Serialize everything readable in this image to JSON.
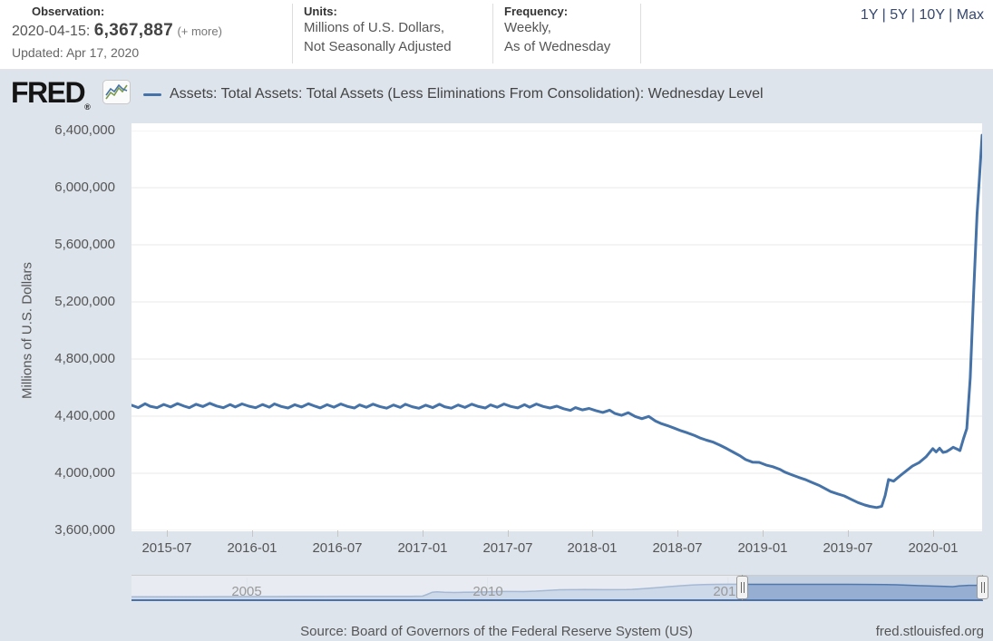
{
  "header": {
    "observation": {
      "label": "Observation:",
      "date_prefix": "2020-04-15:",
      "value": "6,367,887",
      "more": "(+ more)",
      "updated": "Updated: Apr 17, 2020"
    },
    "units": {
      "label": "Units:",
      "line1": "Millions of U.S. Dollars,",
      "line2": "Not Seasonally Adjusted"
    },
    "frequency": {
      "label": "Frequency:",
      "line1": "Weekly,",
      "line2": "As of Wednesday"
    },
    "range_selector": {
      "options": [
        "1Y",
        "5Y",
        "10Y",
        "Max"
      ],
      "separator": "|"
    }
  },
  "brand": {
    "logo_text": "FRED",
    "registered": "®",
    "icon": "fred-sparkline-icon"
  },
  "legend": {
    "marker_color": "#4572a7",
    "label": "Assets: Total Assets: Total Assets (Less Eliminations From Consolidation): Wednesday Level"
  },
  "footer": {
    "source": "Source: Board of Governors of the Federal Reserve System (US)",
    "site": "fred.stlouisfed.org"
  },
  "colors": {
    "line": "#4572a7",
    "page_bg": "#dde4ec",
    "plot_bg": "#ffffff",
    "grid": "#e8e8e8",
    "range_link": "#36486e",
    "nav_area_fill": "#a3b8d8",
    "nav_line": "#4a72a8"
  },
  "chart_data": {
    "type": "line",
    "title": "Assets: Total Assets: Total Assets (Less Eliminations From Consolidation): Wednesday Level",
    "xlabel": "",
    "ylabel": "Millions of U.S. Dollars",
    "grid": "horizontal",
    "legend_position": "top",
    "x_range": [
      2015.29,
      2020.29
    ],
    "y_range": [
      3600000,
      6400000
    ],
    "y_ticks": [
      {
        "v": 6400000,
        "label": "6,400,000"
      },
      {
        "v": 6000000,
        "label": "6,000,000"
      },
      {
        "v": 5600000,
        "label": "5,600,000"
      },
      {
        "v": 5200000,
        "label": "5,200,000"
      },
      {
        "v": 4800000,
        "label": "4,800,000"
      },
      {
        "v": 4400000,
        "label": "4,400,000"
      },
      {
        "v": 4000000,
        "label": "4,000,000"
      },
      {
        "v": 3600000,
        "label": "3,600,000"
      }
    ],
    "x_ticks": [
      {
        "v": 2015.5,
        "label": "2015-07"
      },
      {
        "v": 2016.0,
        "label": "2016-01"
      },
      {
        "v": 2016.5,
        "label": "2016-07"
      },
      {
        "v": 2017.0,
        "label": "2017-01"
      },
      {
        "v": 2017.5,
        "label": "2017-07"
      },
      {
        "v": 2018.0,
        "label": "2018-01"
      },
      {
        "v": 2018.5,
        "label": "2018-07"
      },
      {
        "v": 2019.0,
        "label": "2019-01"
      },
      {
        "v": 2019.5,
        "label": "2019-07"
      },
      {
        "v": 2020.0,
        "label": "2020-01"
      }
    ],
    "series": [
      {
        "name": "Assets: Total Assets: Total Assets (Less Eliminations From Consolidation): Wednesday Level",
        "units": "Millions of U.S. Dollars",
        "last_observation": {
          "date": "2020-04-15",
          "value": 6367887
        },
        "points": [
          [
            2015.29,
            4477000
          ],
          [
            2015.33,
            4460000
          ],
          [
            2015.37,
            4487000
          ],
          [
            2015.4,
            4469000
          ],
          [
            2015.44,
            4459000
          ],
          [
            2015.48,
            4482000
          ],
          [
            2015.52,
            4464000
          ],
          [
            2015.56,
            4488000
          ],
          [
            2015.6,
            4470000
          ],
          [
            2015.63,
            4459000
          ],
          [
            2015.67,
            4483000
          ],
          [
            2015.71,
            4467000
          ],
          [
            2015.75,
            4490000
          ],
          [
            2015.79,
            4471000
          ],
          [
            2015.83,
            4459000
          ],
          [
            2015.87,
            4481000
          ],
          [
            2015.9,
            4464000
          ],
          [
            2015.94,
            4486000
          ],
          [
            2015.98,
            4470000
          ],
          [
            2016.02,
            4459000
          ],
          [
            2016.06,
            4481000
          ],
          [
            2016.1,
            4463000
          ],
          [
            2016.13,
            4486000
          ],
          [
            2016.17,
            4468000
          ],
          [
            2016.21,
            4457000
          ],
          [
            2016.25,
            4480000
          ],
          [
            2016.29,
            4464000
          ],
          [
            2016.33,
            4487000
          ],
          [
            2016.37,
            4469000
          ],
          [
            2016.4,
            4458000
          ],
          [
            2016.44,
            4480000
          ],
          [
            2016.48,
            4463000
          ],
          [
            2016.52,
            4485000
          ],
          [
            2016.56,
            4468000
          ],
          [
            2016.6,
            4457000
          ],
          [
            2016.63,
            4479000
          ],
          [
            2016.67,
            4462000
          ],
          [
            2016.71,
            4484000
          ],
          [
            2016.75,
            4467000
          ],
          [
            2016.79,
            4456000
          ],
          [
            2016.83,
            4478000
          ],
          [
            2016.87,
            4461000
          ],
          [
            2016.9,
            4483000
          ],
          [
            2016.94,
            4466000
          ],
          [
            2016.98,
            4455000
          ],
          [
            2017.02,
            4477000
          ],
          [
            2017.06,
            4460000
          ],
          [
            2017.1,
            4483000
          ],
          [
            2017.13,
            4466000
          ],
          [
            2017.17,
            4456000
          ],
          [
            2017.21,
            4478000
          ],
          [
            2017.25,
            4461000
          ],
          [
            2017.29,
            4484000
          ],
          [
            2017.33,
            4467000
          ],
          [
            2017.37,
            4457000
          ],
          [
            2017.4,
            4479000
          ],
          [
            2017.44,
            4462000
          ],
          [
            2017.48,
            4485000
          ],
          [
            2017.52,
            4468000
          ],
          [
            2017.56,
            4458000
          ],
          [
            2017.6,
            4480000
          ],
          [
            2017.63,
            4463000
          ],
          [
            2017.67,
            4485000
          ],
          [
            2017.71,
            4468000
          ],
          [
            2017.75,
            4457000
          ],
          [
            2017.79,
            4470000
          ],
          [
            2017.83,
            4452000
          ],
          [
            2017.87,
            4440000
          ],
          [
            2017.9,
            4460000
          ],
          [
            2017.94,
            4444000
          ],
          [
            2017.98,
            4454000
          ],
          [
            2018.02,
            4439000
          ],
          [
            2018.06,
            4426000
          ],
          [
            2018.1,
            4442000
          ],
          [
            2018.13,
            4420000
          ],
          [
            2018.17,
            4406000
          ],
          [
            2018.21,
            4424000
          ],
          [
            2018.25,
            4398000
          ],
          [
            2018.29,
            4382000
          ],
          [
            2018.33,
            4398000
          ],
          [
            2018.37,
            4366000
          ],
          [
            2018.4,
            4350000
          ],
          [
            2018.44,
            4334000
          ],
          [
            2018.48,
            4316000
          ],
          [
            2018.52,
            4298000
          ],
          [
            2018.56,
            4282000
          ],
          [
            2018.6,
            4264000
          ],
          [
            2018.63,
            4248000
          ],
          [
            2018.67,
            4232000
          ],
          [
            2018.71,
            4218000
          ],
          [
            2018.75,
            4196000
          ],
          [
            2018.79,
            4172000
          ],
          [
            2018.83,
            4146000
          ],
          [
            2018.87,
            4120000
          ],
          [
            2018.9,
            4096000
          ],
          [
            2018.94,
            4078000
          ],
          [
            2018.98,
            4076000
          ],
          [
            2019.02,
            4058000
          ],
          [
            2019.06,
            4046000
          ],
          [
            2019.1,
            4028000
          ],
          [
            2019.13,
            4008000
          ],
          [
            2019.17,
            3990000
          ],
          [
            2019.21,
            3972000
          ],
          [
            2019.25,
            3956000
          ],
          [
            2019.29,
            3936000
          ],
          [
            2019.33,
            3916000
          ],
          [
            2019.37,
            3891000
          ],
          [
            2019.4,
            3872000
          ],
          [
            2019.44,
            3856000
          ],
          [
            2019.48,
            3841000
          ],
          [
            2019.52,
            3818000
          ],
          [
            2019.56,
            3795000
          ],
          [
            2019.6,
            3778000
          ],
          [
            2019.63,
            3768000
          ],
          [
            2019.67,
            3760000
          ],
          [
            2019.7,
            3769000
          ],
          [
            2019.72,
            3845000
          ],
          [
            2019.74,
            3956000
          ],
          [
            2019.77,
            3945000
          ],
          [
            2019.81,
            3985000
          ],
          [
            2019.85,
            4023000
          ],
          [
            2019.88,
            4050000
          ],
          [
            2019.92,
            4075000
          ],
          [
            2019.96,
            4115000
          ],
          [
            2020.0,
            4173000
          ],
          [
            2020.02,
            4149000
          ],
          [
            2020.04,
            4175000
          ],
          [
            2020.06,
            4146000
          ],
          [
            2020.08,
            4151000
          ],
          [
            2020.1,
            4166000
          ],
          [
            2020.12,
            4182000
          ],
          [
            2020.14,
            4171000
          ],
          [
            2020.16,
            4159000
          ],
          [
            2020.18,
            4241507
          ],
          [
            2020.2,
            4312809
          ],
          [
            2020.22,
            4668212
          ],
          [
            2020.24,
            5254297
          ],
          [
            2020.26,
            5811921
          ],
          [
            2020.275,
            6083429
          ],
          [
            2020.29,
            6367887
          ]
        ]
      }
    ],
    "navigator": {
      "type": "area",
      "x_range": [
        2002.6,
        2020.3
      ],
      "y_range": [
        0,
        6500000
      ],
      "selected_range": [
        2015.29,
        2020.29
      ],
      "x_ticks": [
        {
          "v": 2005,
          "label": "2005"
        },
        {
          "v": 2010,
          "label": "2010"
        },
        {
          "v": 2015,
          "label": "2015"
        }
      ],
      "points": [
        [
          2002.6,
          725000
        ],
        [
          2003.0,
          735000
        ],
        [
          2003.5,
          750000
        ],
        [
          2004.0,
          765000
        ],
        [
          2004.5,
          780000
        ],
        [
          2005.0,
          800000
        ],
        [
          2005.5,
          815000
        ],
        [
          2006.0,
          830000
        ],
        [
          2006.5,
          845000
        ],
        [
          2007.0,
          858000
        ],
        [
          2007.5,
          870000
        ],
        [
          2008.0,
          890000
        ],
        [
          2008.4,
          900000
        ],
        [
          2008.65,
          940000
        ],
        [
          2008.75,
          1500000
        ],
        [
          2008.85,
          2100000
        ],
        [
          2008.95,
          2260000
        ],
        [
          2009.1,
          2080000
        ],
        [
          2009.3,
          2020000
        ],
        [
          2009.5,
          2080000
        ],
        [
          2009.75,
          2140000
        ],
        [
          2010.0,
          2240000
        ],
        [
          2010.25,
          2330000
        ],
        [
          2010.5,
          2340000
        ],
        [
          2010.75,
          2290000
        ],
        [
          2011.0,
          2430000
        ],
        [
          2011.25,
          2650000
        ],
        [
          2011.5,
          2850000
        ],
        [
          2011.75,
          2880000
        ],
        [
          2012.0,
          2920000
        ],
        [
          2012.5,
          2870000
        ],
        [
          2012.9,
          2910000
        ],
        [
          2013.0,
          2960000
        ],
        [
          2013.25,
          3200000
        ],
        [
          2013.5,
          3480000
        ],
        [
          2013.75,
          3760000
        ],
        [
          2014.0,
          4030000
        ],
        [
          2014.25,
          4280000
        ],
        [
          2014.5,
          4410000
        ],
        [
          2014.75,
          4480000
        ],
        [
          2015.0,
          4500000
        ],
        [
          2015.5,
          4480000
        ],
        [
          2016.0,
          4470000
        ],
        [
          2016.5,
          4465000
        ],
        [
          2017.0,
          4460000
        ],
        [
          2017.5,
          4465000
        ],
        [
          2017.9,
          4445000
        ],
        [
          2018.25,
          4400000
        ],
        [
          2018.5,
          4320000
        ],
        [
          2018.75,
          4200000
        ],
        [
          2019.0,
          4060000
        ],
        [
          2019.25,
          3950000
        ],
        [
          2019.5,
          3840000
        ],
        [
          2019.67,
          3760000
        ],
        [
          2019.8,
          3970000
        ],
        [
          2020.0,
          4170000
        ],
        [
          2020.16,
          4160000
        ],
        [
          2020.22,
          4668000
        ],
        [
          2020.26,
          5812000
        ],
        [
          2020.29,
          6367887
        ]
      ]
    }
  }
}
